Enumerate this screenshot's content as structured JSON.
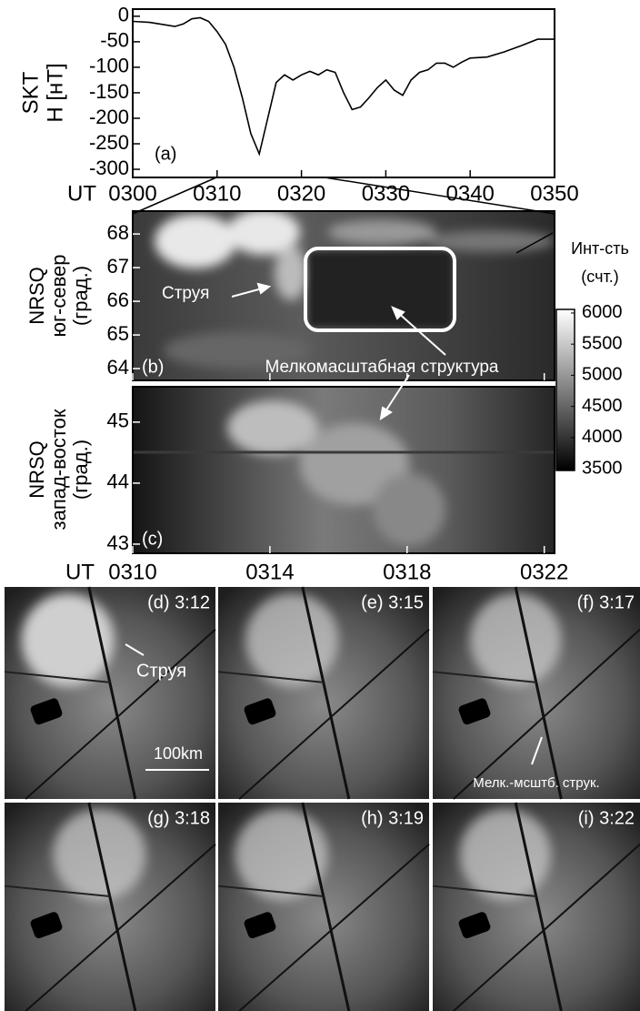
{
  "chart_data": [
    {
      "type": "line",
      "panel": "(a)",
      "x_label": "UT",
      "y_label": [
        "SKT",
        "H [нТ]"
      ],
      "x": [
        0,
        2,
        5,
        6,
        7,
        8,
        9,
        10,
        11,
        12,
        13,
        14,
        15,
        16,
        17,
        18,
        19,
        20,
        21,
        22,
        23,
        24,
        25,
        26,
        27,
        28,
        29,
        30,
        31,
        32,
        33,
        34,
        35,
        36,
        37,
        38,
        39,
        40,
        42,
        44,
        46,
        48,
        50
      ],
      "series": [
        {
          "color": "#000000",
          "values": [
            -10,
            -12,
            -20,
            -15,
            -5,
            -3,
            -10,
            -30,
            -55,
            -100,
            -160,
            -230,
            -270,
            -200,
            -130,
            -115,
            -125,
            -115,
            -108,
            -115,
            -105,
            -110,
            -150,
            -183,
            -178,
            -160,
            -140,
            -125,
            -145,
            -155,
            -125,
            -110,
            -105,
            -92,
            -92,
            -100,
            -90,
            -82,
            -80,
            -70,
            -58,
            -45,
            -45
          ]
        }
      ],
      "xlim": [
        0,
        50
      ],
      "xticks": [
        {
          "value": 0,
          "label": "0300"
        },
        {
          "value": 10,
          "label": "0310"
        },
        {
          "value": 20,
          "label": "0320"
        },
        {
          "value": 30,
          "label": "0330"
        },
        {
          "value": 40,
          "label": "0340"
        },
        {
          "value": 50,
          "label": "0350"
        }
      ],
      "ylim": [
        -316,
        14
      ],
      "yticks": [
        0,
        -50,
        -100,
        -150,
        -200,
        -250,
        -300
      ]
    },
    {
      "type": "image",
      "panel": "(b)",
      "y_label": [
        "NRSQ",
        "юг-север",
        "(град.)"
      ],
      "xlim": [
        10,
        22.3
      ],
      "ylim": [
        63.65,
        68.68
      ],
      "yticks": [
        64,
        65,
        66,
        67,
        68
      ],
      "annotations": [
        "Струя",
        "Мелкомасштабная структура"
      ]
    },
    {
      "type": "image",
      "panel": "(c)",
      "y_label": [
        "NRSQ",
        "запад-восток",
        "(град.)"
      ],
      "x_label": "UT",
      "xlim": [
        10,
        22.3
      ],
      "xticks": [
        {
          "value": 10,
          "label": "0310"
        },
        {
          "value": 14,
          "label": "0314"
        },
        {
          "value": 18,
          "label": "0318"
        },
        {
          "value": 22,
          "label": "0322"
        }
      ],
      "ylim": [
        42.85,
        45.58
      ],
      "yticks": [
        43,
        44,
        45
      ]
    }
  ],
  "colorbar": {
    "title": [
      "Инт-сть",
      "(счт.)"
    ],
    "lim": [
      3471,
      6058
    ],
    "ticks": [
      3500,
      4000,
      4500,
      5000,
      5500,
      6000
    ]
  },
  "photos": [
    {
      "label": "(d) 3:12",
      "notes": [
        "Струя",
        "100km"
      ]
    },
    {
      "label": "(e) 3:15"
    },
    {
      "label": "(f) 3:17",
      "notes": [
        "Мелк.-мсштб. струк."
      ]
    },
    {
      "label": "(g) 3:18"
    },
    {
      "label": "(h) 3:19"
    },
    {
      "label": "(i) 3:22"
    }
  ]
}
